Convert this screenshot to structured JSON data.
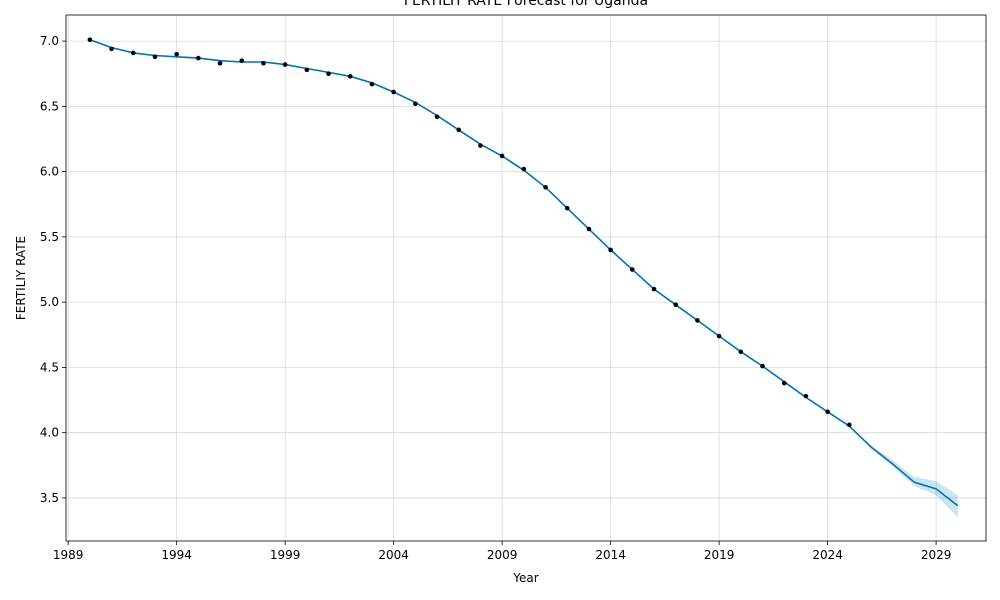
{
  "chart_data": {
    "type": "line",
    "title": "FERTILIY RATE Forecast for Uganda",
    "xlabel": "Year",
    "ylabel": "FERTILIY RATE",
    "xlim": [
      1988.9,
      2031.3
    ],
    "ylim": [
      3.17,
      7.2
    ],
    "x_ticks": [
      1989,
      1994,
      1999,
      2004,
      2009,
      2014,
      2019,
      2024,
      2029
    ],
    "y_ticks": [
      "3.5",
      "4.0",
      "4.5",
      "5.0",
      "5.5",
      "6.0",
      "6.5",
      "7.0"
    ],
    "grid": true,
    "colors": {
      "forecast_line": "#0072b2",
      "uncertainty_band": "#0072b2",
      "observed_points": "#000000",
      "grid": "#d9d9d9"
    },
    "series": [
      {
        "role": "observed",
        "x": [
          1990,
          1991,
          1992,
          1993,
          1994,
          1995,
          1996,
          1997,
          1998,
          1999,
          2000,
          2001,
          2002,
          2003,
          2004,
          2005,
          2006,
          2007,
          2008,
          2009,
          2010,
          2011,
          2012,
          2013,
          2014,
          2015,
          2016,
          2017,
          2018,
          2019,
          2020,
          2021,
          2022,
          2023,
          2024,
          2025
        ],
        "y": [
          7.01,
          6.94,
          6.91,
          6.88,
          6.9,
          6.87,
          6.83,
          6.85,
          6.83,
          6.82,
          6.78,
          6.75,
          6.73,
          6.67,
          6.61,
          6.52,
          6.42,
          6.32,
          6.2,
          6.12,
          6.02,
          5.88,
          5.72,
          5.56,
          5.4,
          5.25,
          5.1,
          4.98,
          4.86,
          4.74,
          4.62,
          4.51,
          4.38,
          4.28,
          4.16,
          4.06
        ]
      },
      {
        "role": "forecast",
        "x": [
          1990,
          1991,
          1992,
          1993,
          1994,
          1995,
          1996,
          1997,
          1998,
          1999,
          2000,
          2001,
          2002,
          2003,
          2004,
          2005,
          2006,
          2007,
          2008,
          2009,
          2010,
          2011,
          2012,
          2013,
          2014,
          2015,
          2016,
          2017,
          2018,
          2019,
          2020,
          2021,
          2022,
          2023,
          2024,
          2025,
          2026,
          2027,
          2028,
          2029,
          2030
        ],
        "y": [
          7.01,
          6.95,
          6.91,
          6.89,
          6.88,
          6.87,
          6.85,
          6.84,
          6.84,
          6.82,
          6.79,
          6.76,
          6.73,
          6.68,
          6.61,
          6.53,
          6.43,
          6.32,
          6.21,
          6.12,
          6.01,
          5.88,
          5.72,
          5.56,
          5.4,
          5.25,
          5.1,
          4.98,
          4.86,
          4.74,
          4.62,
          4.51,
          4.39,
          4.27,
          4.16,
          4.05,
          3.89,
          3.76,
          3.62,
          3.57,
          3.44
        ],
        "lower": [
          7.01,
          6.95,
          6.91,
          6.89,
          6.88,
          6.87,
          6.85,
          6.84,
          6.84,
          6.82,
          6.79,
          6.76,
          6.73,
          6.68,
          6.61,
          6.53,
          6.43,
          6.32,
          6.21,
          6.12,
          6.01,
          5.88,
          5.72,
          5.56,
          5.4,
          5.25,
          5.1,
          4.98,
          4.86,
          4.74,
          4.62,
          4.51,
          4.39,
          4.27,
          4.16,
          4.05,
          3.88,
          3.74,
          3.59,
          3.52,
          3.35
        ],
        "upper": [
          7.01,
          6.95,
          6.91,
          6.89,
          6.88,
          6.87,
          6.85,
          6.84,
          6.84,
          6.82,
          6.79,
          6.76,
          6.73,
          6.68,
          6.61,
          6.53,
          6.43,
          6.32,
          6.21,
          6.12,
          6.01,
          5.88,
          5.72,
          5.56,
          5.4,
          5.25,
          5.1,
          4.98,
          4.86,
          4.74,
          4.62,
          4.51,
          4.39,
          4.27,
          4.16,
          4.05,
          3.9,
          3.79,
          3.66,
          3.63,
          3.52
        ]
      }
    ]
  }
}
